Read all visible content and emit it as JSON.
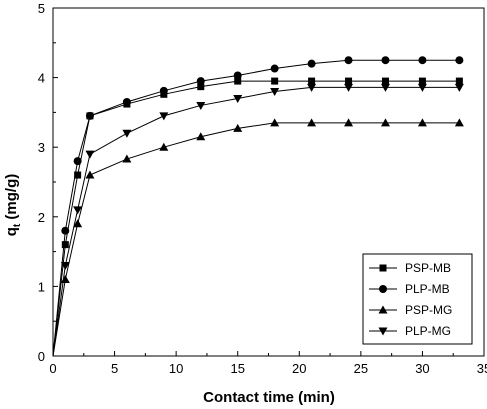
{
  "chart_data": {
    "type": "line",
    "xlabel": "Contact time (min)",
    "ylabel_main": "q",
    "ylabel_sub": "t",
    "ylabel_unit": " (mg/g)",
    "xlim": [
      0,
      35
    ],
    "ylim": [
      0,
      5
    ],
    "xticks": [
      0,
      5,
      10,
      15,
      20,
      25,
      30,
      35
    ],
    "yticks": [
      0,
      1,
      2,
      3,
      4,
      5
    ],
    "grid": false,
    "legend_position": "bottom-right",
    "x": [
      0,
      1,
      2,
      3,
      6,
      9,
      12,
      15,
      18,
      21,
      24,
      27,
      30,
      33
    ],
    "series": [
      {
        "name": "PSP-MB",
        "marker": "square",
        "values": [
          0,
          1.6,
          2.6,
          3.45,
          3.62,
          3.76,
          3.87,
          3.95,
          3.95,
          3.95,
          3.95,
          3.95,
          3.95,
          3.95
        ]
      },
      {
        "name": "PLP-MB",
        "marker": "circle",
        "values": [
          0,
          1.8,
          2.8,
          3.45,
          3.65,
          3.81,
          3.95,
          4.03,
          4.13,
          4.2,
          4.25,
          4.25,
          4.25,
          4.25
        ]
      },
      {
        "name": "PSP-MG",
        "marker": "triangle-up",
        "values": [
          0,
          1.1,
          1.9,
          2.6,
          2.83,
          3.0,
          3.15,
          3.27,
          3.35,
          3.35,
          3.35,
          3.35,
          3.35,
          3.35
        ]
      },
      {
        "name": "PLP-MG",
        "marker": "triangle-down",
        "values": [
          0,
          1.3,
          2.1,
          2.9,
          3.2,
          3.45,
          3.6,
          3.7,
          3.8,
          3.86,
          3.86,
          3.86,
          3.86,
          3.86
        ]
      }
    ]
  }
}
